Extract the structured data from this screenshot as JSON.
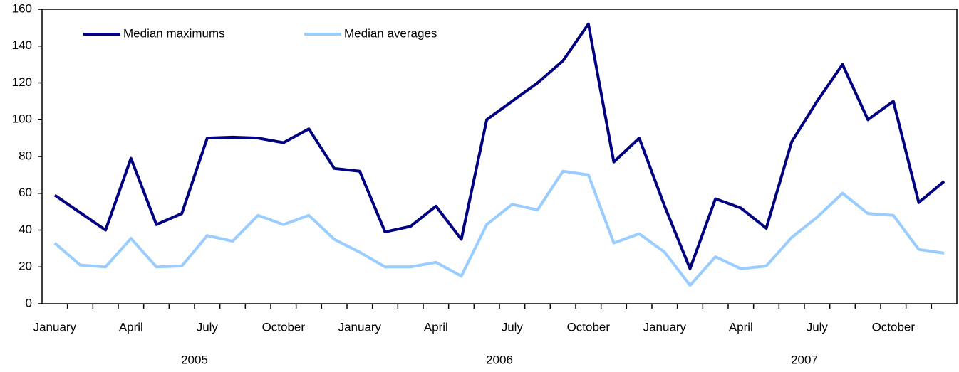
{
  "chart_data": {
    "type": "line",
    "categories": [
      "January",
      null,
      null,
      "April",
      null,
      null,
      "July",
      null,
      null,
      "October",
      null,
      null,
      "January",
      null,
      null,
      "April",
      null,
      null,
      "July",
      null,
      null,
      "October",
      null,
      null,
      "January",
      null,
      null,
      "April",
      null,
      null,
      "July",
      null,
      null,
      "October",
      null,
      null
    ],
    "year_labels": [
      "2005",
      "2006",
      "2007"
    ],
    "series": [
      {
        "name": "Median maximums",
        "color": "#000080",
        "values": [
          59,
          49.5,
          40,
          79,
          43,
          49,
          90,
          90.5,
          90,
          87.5,
          95,
          73.5,
          72,
          39,
          42,
          53,
          35,
          100,
          110,
          120,
          132,
          152,
          77,
          90,
          53,
          19,
          57,
          52,
          41,
          88,
          110,
          130,
          100,
          110,
          55,
          66.5
        ]
      },
      {
        "name": "Median averages",
        "color": "#99ccff",
        "values": [
          33,
          21,
          20,
          35.5,
          20,
          20.5,
          37,
          34,
          48,
          43,
          48,
          35,
          28,
          20,
          20,
          22.5,
          15,
          43,
          54,
          51,
          72,
          70,
          33,
          38,
          28,
          10,
          25.5,
          19,
          20.5,
          36,
          47,
          60,
          49,
          48,
          29.5,
          27.5
        ]
      }
    ],
    "ylim": [
      0,
      160
    ],
    "yticks": [
      0,
      20,
      40,
      60,
      80,
      100,
      120,
      140,
      160
    ],
    "grid": false,
    "legend": "top-left"
  }
}
